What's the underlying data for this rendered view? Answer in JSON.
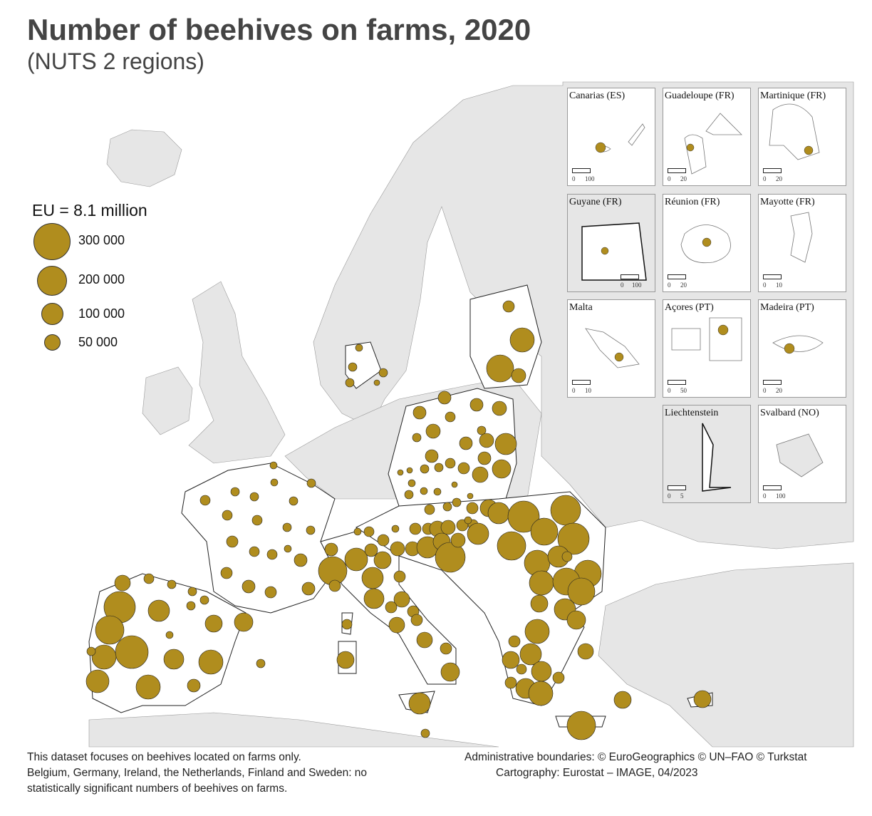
{
  "title": "Number of beehives on farms, 2020",
  "subtitle": "(NUTS 2 regions)",
  "legend": {
    "title": "EU = 8.1 million",
    "items": [
      {
        "label": "300 000",
        "value": 300000
      },
      {
        "label": "200 000",
        "value": 200000
      },
      {
        "label": "100 000",
        "value": 100000
      },
      {
        "label": "50 000",
        "value": 50000
      }
    ],
    "color": "#b08d1e"
  },
  "insets": [
    {
      "name": "Canarias (ES)",
      "scale": [
        "0",
        "100"
      ]
    },
    {
      "name": "Guadeloupe (FR)",
      "scale": [
        "0",
        "20"
      ]
    },
    {
      "name": "Martinique (FR)",
      "scale": [
        "0",
        "20"
      ]
    },
    {
      "name": "Guyane (FR)",
      "scale": [
        "0",
        "100"
      ]
    },
    {
      "name": "Réunion (FR)",
      "scale": [
        "0",
        "20"
      ]
    },
    {
      "name": "Mayotte (FR)",
      "scale": [
        "0",
        "10"
      ]
    },
    {
      "name": "Malta",
      "scale": [
        "0",
        "10"
      ]
    },
    {
      "name": "Açores (PT)",
      "scale": [
        "0",
        "50"
      ]
    },
    {
      "name": "Madeira (PT)",
      "scale": [
        "0",
        "20"
      ]
    },
    {
      "name": "Liechtenstein",
      "scale": [
        "0",
        "5"
      ]
    },
    {
      "name": "Svalbard (NO)",
      "scale": [
        "0",
        "100"
      ]
    }
  ],
  "footer": {
    "note_lines": [
      "This dataset focuses on beehives located on farms only.",
      "Belgium, Germany, Ireland, the Netherlands, Finland and Sweden: no",
      "statistically significant numbers of beehives on farms."
    ],
    "credits": [
      "Administrative boundaries: © EuroGeographics © UN–FAO © Turkstat",
      "Cartography: Eurostat – IMAGE, 04/2023"
    ]
  },
  "colors": {
    "bubble": "#b08d1e",
    "land": "#e6e6e6",
    "eu_land": "#ffffff"
  }
}
